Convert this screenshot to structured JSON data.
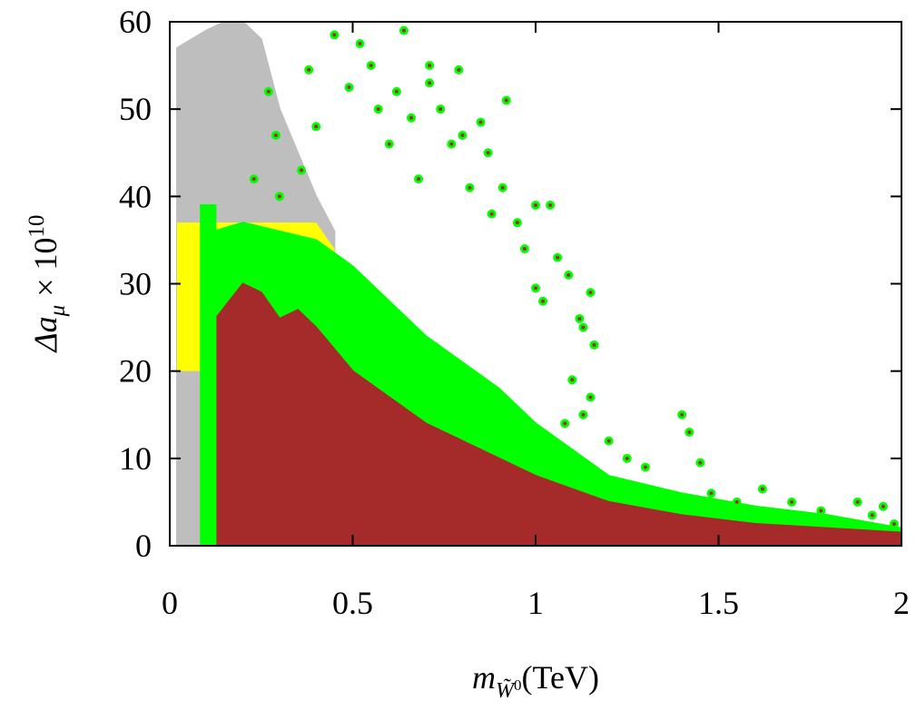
{
  "chart_data": {
    "type": "scatter",
    "xlabel_parts": [
      "m",
      "W̃",
      "0",
      "(TeV)"
    ],
    "ylabel_parts": [
      "Δa",
      "μ",
      " × 10",
      "10"
    ],
    "xlim": [
      0,
      2
    ],
    "xticks": [
      0,
      0.5,
      1,
      1.5,
      2
    ],
    "ylim": [
      0,
      60
    ],
    "yticks": [
      0,
      10,
      20,
      30,
      40,
      50,
      60
    ],
    "series": [
      {
        "mode": "area",
        "color": "#bebebe",
        "x": [
          0.02,
          0.1,
          0.15,
          0.2,
          0.25,
          0.3,
          0.35,
          0.4,
          0.45
        ],
        "values": [
          57,
          59,
          60,
          60,
          58,
          50,
          45,
          40,
          36
        ]
      },
      {
        "mode": "band",
        "color": "#ffff00",
        "x": [
          0.02,
          0.1,
          0.2,
          0.3,
          0.4,
          0.45
        ],
        "values": [
          37,
          37,
          37,
          37,
          37,
          34
        ],
        "low": [
          20,
          20,
          20,
          20,
          25,
          30
        ]
      },
      {
        "mode": "area",
        "color": "#00ff00",
        "x": [
          0.12,
          0.2,
          0.3,
          0.4,
          0.5,
          0.6,
          0.7,
          0.8,
          0.9,
          1.0,
          1.1,
          1.2,
          1.4,
          1.6,
          1.8,
          2.0
        ],
        "values": [
          36,
          37,
          36,
          35,
          32,
          28,
          24,
          21,
          18,
          14,
          11,
          8,
          6,
          4.5,
          3.5,
          2
        ]
      },
      {
        "mode": "points",
        "color": "#00ff00",
        "center_color": "#a52a2a",
        "x": [
          0.45,
          0.52,
          0.64,
          0.55,
          0.71,
          0.79,
          0.38,
          0.49,
          0.57,
          0.66,
          0.74,
          0.85,
          0.92,
          0.29,
          0.27,
          0.6,
          0.77,
          0.87,
          0.36,
          0.68,
          0.82,
          0.91,
          1.0,
          1.04,
          0.95,
          0.97,
          1.06,
          1.09,
          1.15,
          1.02,
          1.13,
          1.16,
          1.1,
          1.15,
          1.13,
          1.08,
          1.2,
          1.25,
          1.4,
          1.42,
          1.3,
          1.45,
          1.48,
          1.55,
          1.62,
          1.7,
          1.78,
          1.88,
          1.95,
          1.92,
          1.98,
          0.23,
          0.3,
          0.4,
          0.62,
          0.71,
          0.8,
          0.88,
          1.0,
          1.12
        ],
        "values": [
          58.5,
          57.5,
          59,
          55,
          55,
          54.5,
          54.5,
          52.5,
          50,
          49,
          50,
          48.5,
          51,
          47,
          52,
          46,
          46,
          45,
          43,
          42,
          41,
          41,
          39,
          39,
          37,
          34,
          33,
          31,
          29,
          28,
          25,
          23,
          19,
          17,
          15,
          14,
          12,
          10,
          15,
          13,
          9,
          9.5,
          6,
          5,
          6.5,
          5,
          4,
          5,
          4.5,
          3.5,
          2.5,
          42,
          40,
          48,
          52,
          53,
          47,
          38,
          29.5,
          26
        ]
      },
      {
        "mode": "area",
        "color": "#a52a2a",
        "x": [
          0.09,
          0.12,
          0.125,
          0.2,
          0.25,
          0.3,
          0.35,
          0.4,
          0.5,
          0.6,
          0.7,
          0.8,
          0.9,
          1.0,
          1.2,
          1.4,
          1.6,
          1.8,
          2.0
        ],
        "values": [
          14,
          14,
          26,
          30,
          29,
          26,
          27,
          25,
          20,
          17,
          14,
          12,
          10,
          8,
          5,
          3.5,
          2.5,
          2,
          1.5
        ]
      },
      {
        "mode": "area",
        "color": "#00ff00",
        "x": [
          0.085,
          0.125
        ],
        "values": [
          39,
          39
        ]
      }
    ]
  }
}
